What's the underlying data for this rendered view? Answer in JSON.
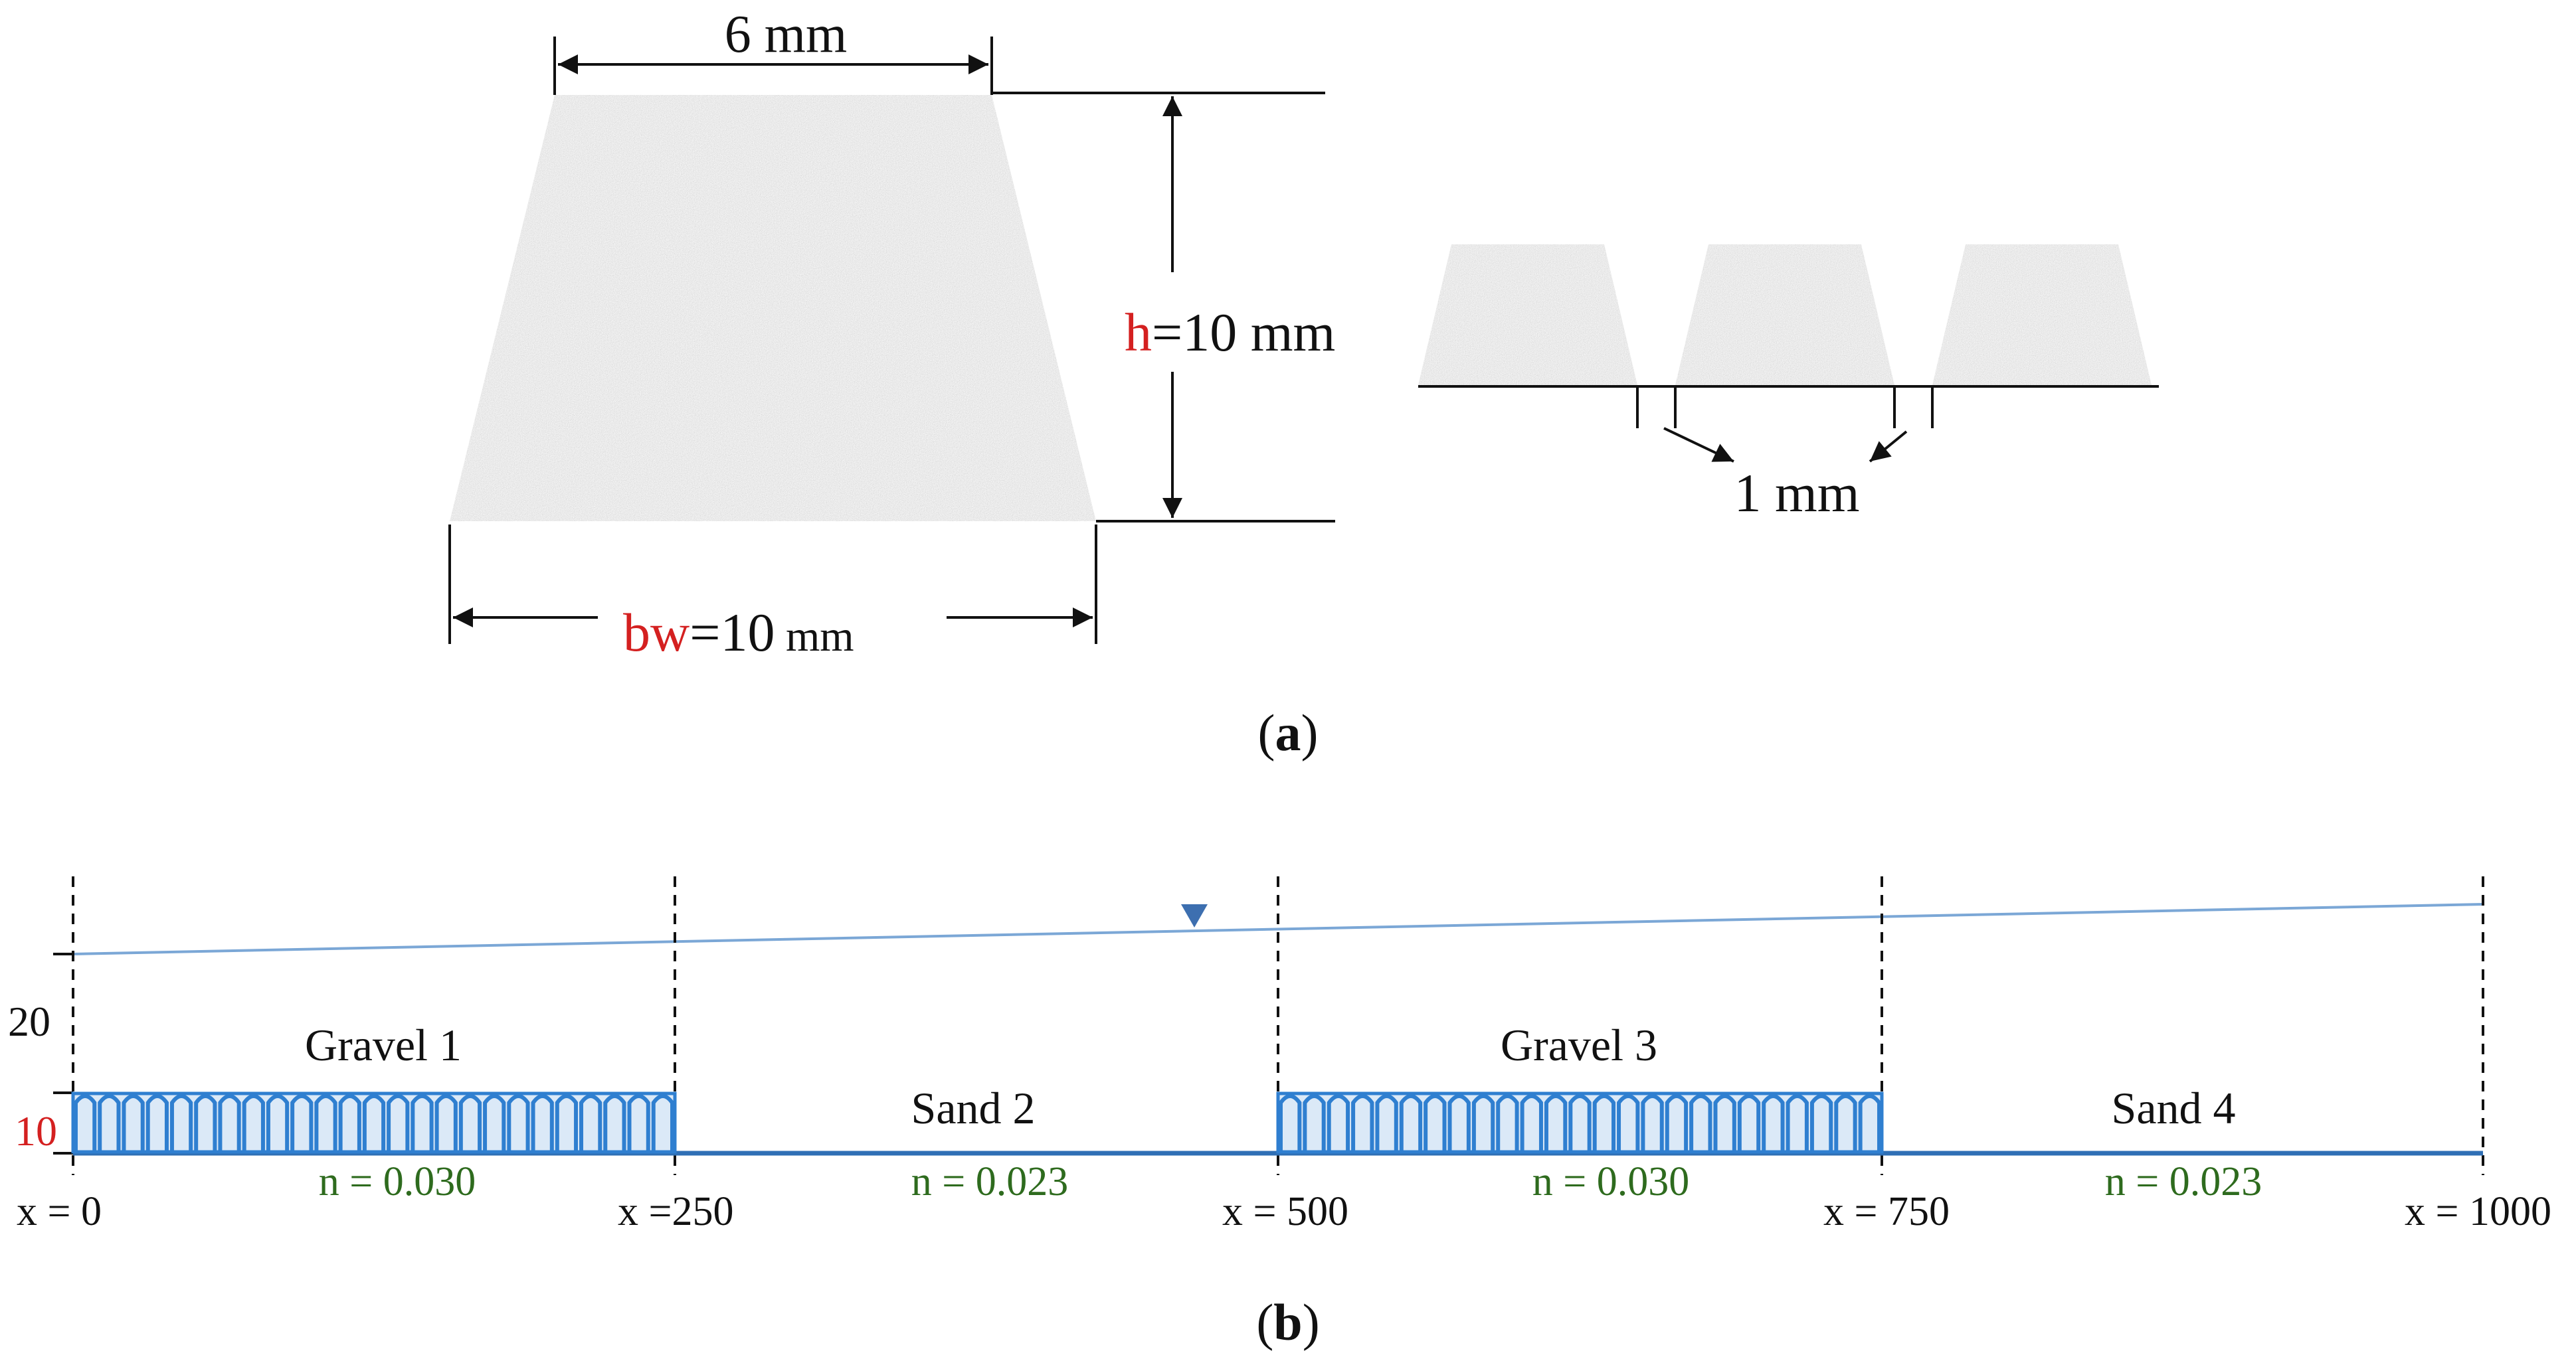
{
  "panel_a": {
    "top_width_label": "6 mm",
    "height_label_var": "h",
    "height_label_value": "=10 mm",
    "base_label_var": "bw",
    "base_label_value": "=10",
    "base_label_unit": " mm",
    "gap_label": "1 mm",
    "caption_open": "(",
    "caption_letter": "a",
    "caption_close": ")"
  },
  "panel_b": {
    "depth_ticks": [
      "20",
      "10"
    ],
    "reaches": [
      {
        "name": "Gravel 1",
        "n_label": "n = 0.030",
        "type": "gravel"
      },
      {
        "name": "Sand 2",
        "n_label": "n = 0.023",
        "type": "sand"
      },
      {
        "name": "Gravel 3",
        "n_label": "n = 0.030",
        "type": "gravel"
      },
      {
        "name": "Sand 4",
        "n_label": "n = 0.023",
        "type": "sand"
      }
    ],
    "x_labels": [
      "x = 0",
      "x =250",
      "x = 500",
      "x = 750",
      "x = 1000"
    ],
    "caption_open": "(",
    "caption_letter": "b",
    "caption_close": ")"
  },
  "colors": {
    "text": "#111111",
    "highlight": "#d42020",
    "roughness": "#2e6b1e",
    "water": "#7ba7d6",
    "water_marker": "#3d6fb0",
    "element": "#2f7fd0",
    "grain_fill": "#e8e8e8"
  }
}
